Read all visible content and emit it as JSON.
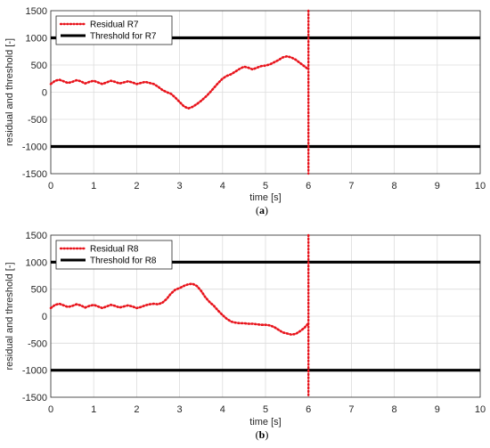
{
  "chart_data": [
    {
      "type": "line",
      "panel_label": "a",
      "caption": "(a)",
      "xlabel": "time [s]",
      "ylabel": "residual and threshold [-]",
      "xlim": [
        0,
        10
      ],
      "ylim": [
        -1500,
        1500
      ],
      "xticks": [
        0,
        1,
        2,
        3,
        4,
        5,
        6,
        7,
        8,
        9,
        10
      ],
      "yticks": [
        -1500,
        -1000,
        -500,
        0,
        500,
        1000,
        1500
      ],
      "grid": true,
      "legend_position": "top-left",
      "vertical_marker": {
        "x": 6,
        "color": "#e8141c",
        "style": "dotted"
      },
      "series": [
        {
          "name": "Residual R7",
          "color": "#e8141c",
          "style": "dotted",
          "x": [
            0,
            0.1,
            0.2,
            0.3,
            0.4,
            0.5,
            0.6,
            0.7,
            0.8,
            0.9,
            1.0,
            1.1,
            1.2,
            1.3,
            1.4,
            1.5,
            1.6,
            1.7,
            1.8,
            1.9,
            2.0,
            2.1,
            2.2,
            2.3,
            2.4,
            2.5,
            2.6,
            2.7,
            2.8,
            2.9,
            3.0,
            3.1,
            3.2,
            3.3,
            3.4,
            3.5,
            3.6,
            3.7,
            3.8,
            3.9,
            4.0,
            4.1,
            4.2,
            4.3,
            4.4,
            4.5,
            4.6,
            4.7,
            4.8,
            4.9,
            5.0,
            5.1,
            5.2,
            5.3,
            5.4,
            5.5,
            5.6,
            5.7,
            5.8,
            5.9,
            6.0
          ],
          "values": [
            150,
            210,
            230,
            200,
            170,
            190,
            220,
            200,
            160,
            190,
            210,
            180,
            150,
            180,
            210,
            190,
            160,
            180,
            200,
            180,
            150,
            170,
            190,
            170,
            150,
            100,
            40,
            0,
            -30,
            -100,
            -180,
            -260,
            -300,
            -270,
            -220,
            -160,
            -90,
            -10,
            80,
            170,
            250,
            300,
            330,
            380,
            430,
            470,
            450,
            420,
            450,
            480,
            490,
            510,
            550,
            590,
            640,
            660,
            640,
            600,
            540,
            480,
            420
          ]
        },
        {
          "name": "Threshold for R7",
          "color": "#000000",
          "style": "solid",
          "x": [
            0,
            10
          ],
          "values": [
            1000,
            1000
          ]
        },
        {
          "name": "",
          "color": "#000000",
          "style": "solid",
          "x": [
            0,
            10
          ],
          "values": [
            -1000,
            -1000
          ]
        }
      ]
    },
    {
      "type": "line",
      "panel_label": "b",
      "caption": "(b)",
      "xlabel": "time [s]",
      "ylabel": "residual and threshold [-]",
      "xlim": [
        0,
        10
      ],
      "ylim": [
        -1500,
        1500
      ],
      "xticks": [
        0,
        1,
        2,
        3,
        4,
        5,
        6,
        7,
        8,
        9,
        10
      ],
      "yticks": [
        -1500,
        -1000,
        -500,
        0,
        500,
        1000,
        1500
      ],
      "grid": true,
      "legend_position": "top-left",
      "vertical_marker": {
        "x": 6,
        "color": "#e8141c",
        "style": "dotted"
      },
      "series": [
        {
          "name": "Residual R8",
          "color": "#e8141c",
          "style": "dotted",
          "x": [
            0,
            0.1,
            0.2,
            0.3,
            0.4,
            0.5,
            0.6,
            0.7,
            0.8,
            0.9,
            1.0,
            1.1,
            1.2,
            1.3,
            1.4,
            1.5,
            1.6,
            1.7,
            1.8,
            1.9,
            2.0,
            2.1,
            2.2,
            2.3,
            2.4,
            2.5,
            2.6,
            2.7,
            2.8,
            2.9,
            3.0,
            3.1,
            3.2,
            3.3,
            3.4,
            3.5,
            3.6,
            3.7,
            3.8,
            3.9,
            4.0,
            4.1,
            4.2,
            4.3,
            4.4,
            4.5,
            4.6,
            4.7,
            4.8,
            4.9,
            5.0,
            5.1,
            5.2,
            5.3,
            5.4,
            5.5,
            5.6,
            5.7,
            5.8,
            5.9,
            6.0
          ],
          "values": [
            150,
            210,
            230,
            200,
            170,
            190,
            220,
            200,
            160,
            190,
            210,
            180,
            150,
            180,
            210,
            190,
            160,
            180,
            200,
            180,
            150,
            170,
            200,
            220,
            230,
            220,
            250,
            320,
            420,
            490,
            520,
            560,
            590,
            600,
            560,
            470,
            350,
            260,
            190,
            100,
            20,
            -50,
            -100,
            -120,
            -130,
            -130,
            -140,
            -140,
            -150,
            -160,
            -160,
            -170,
            -200,
            -250,
            -300,
            -320,
            -340,
            -330,
            -280,
            -220,
            -130
          ]
        },
        {
          "name": "Threshold for R8",
          "color": "#000000",
          "style": "solid",
          "x": [
            0,
            10
          ],
          "values": [
            1000,
            1000
          ]
        },
        {
          "name": "",
          "color": "#000000",
          "style": "solid",
          "x": [
            0,
            10
          ],
          "values": [
            -1000,
            -1000
          ]
        }
      ]
    }
  ]
}
